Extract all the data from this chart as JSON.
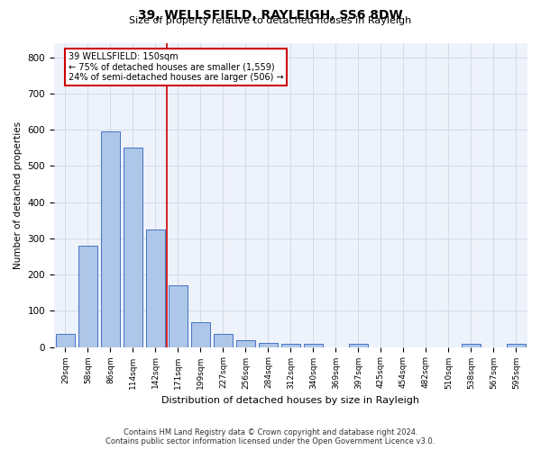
{
  "title1": "39, WELLSFIELD, RAYLEIGH, SS6 8DW",
  "title2": "Size of property relative to detached houses in Rayleigh",
  "xlabel": "Distribution of detached houses by size in Rayleigh",
  "ylabel": "Number of detached properties",
  "footer1": "Contains HM Land Registry data © Crown copyright and database right 2024.",
  "footer2": "Contains public sector information licensed under the Open Government Licence v3.0.",
  "annotation_line1": "39 WELLSFIELD: 150sqm",
  "annotation_line2": "← 75% of detached houses are smaller (1,559)",
  "annotation_line3": "24% of semi-detached houses are larger (506) →",
  "bar_labels": [
    "29sqm",
    "58sqm",
    "86sqm",
    "114sqm",
    "142sqm",
    "171sqm",
    "199sqm",
    "227sqm",
    "256sqm",
    "284sqm",
    "312sqm",
    "340sqm",
    "369sqm",
    "397sqm",
    "425sqm",
    "454sqm",
    "482sqm",
    "510sqm",
    "538sqm",
    "567sqm",
    "595sqm"
  ],
  "bar_values": [
    36,
    280,
    595,
    550,
    325,
    170,
    68,
    36,
    20,
    12,
    8,
    10,
    0,
    8,
    0,
    0,
    0,
    0,
    8,
    0,
    8
  ],
  "bar_color": "#aec6e8",
  "bar_edge_color": "#4472c4",
  "vline_color": "#cc0000",
  "annotation_box_edge": "#cc0000",
  "grid_color": "#d0d8e8",
  "bg_color": "#eef2fa",
  "ylim": [
    0,
    840
  ],
  "yticks": [
    0,
    100,
    200,
    300,
    400,
    500,
    600,
    700,
    800
  ],
  "vline_x_index": 4.5,
  "fig_width": 6.0,
  "fig_height": 5.0,
  "dpi": 100
}
